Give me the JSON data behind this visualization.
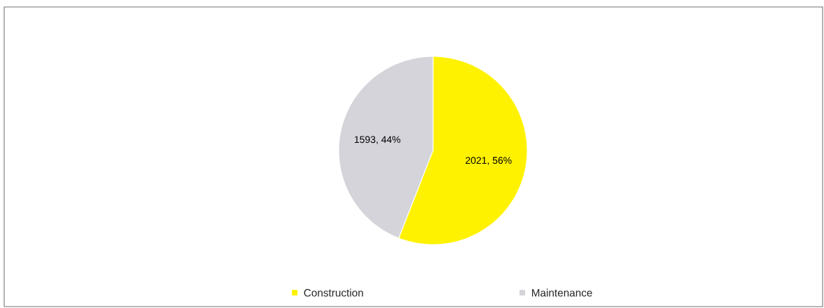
{
  "chart_data": {
    "type": "pie",
    "categories": [
      "Construction",
      "Maintenance"
    ],
    "values": [
      2021,
      1593
    ],
    "value_labels": [
      "2021, 56%",
      "1593, 44%"
    ],
    "colors": [
      "#fff200",
      "#d4d4da"
    ],
    "legend": "bottom"
  }
}
